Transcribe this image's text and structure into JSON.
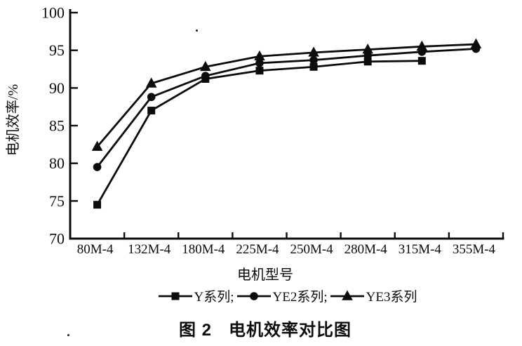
{
  "figure": {
    "caption_prefix": "图 2",
    "caption_title": "电机效率对比图"
  },
  "chart_data": {
    "type": "line",
    "title": "",
    "xlabel": "电机型号",
    "ylabel": "电机效率/%",
    "ylim": [
      70,
      100
    ],
    "yticks": [
      70,
      75,
      80,
      85,
      90,
      95,
      100
    ],
    "grid": false,
    "legend_position": "bottom",
    "legend_separator": ";",
    "line_color": "#0c0c0c",
    "background": "#ffffff",
    "categories": [
      "80M-4",
      "132M-4",
      "180M-4",
      "225M-4",
      "250M-4",
      "280M-4",
      "315M-4",
      "355M-4"
    ],
    "series": [
      {
        "name": "Y系列",
        "marker": "square",
        "values": [
          74.5,
          87.0,
          91.2,
          92.3,
          92.8,
          93.5,
          93.6,
          null
        ]
      },
      {
        "name": "YE2系列",
        "marker": "circle",
        "values": [
          79.5,
          88.8,
          91.6,
          93.3,
          93.7,
          94.3,
          94.8,
          95.2
        ]
      },
      {
        "name": "YE3系列",
        "marker": "triangle",
        "values": [
          82.2,
          90.6,
          92.8,
          94.2,
          94.7,
          95.1,
          95.5,
          95.8
        ]
      }
    ]
  }
}
